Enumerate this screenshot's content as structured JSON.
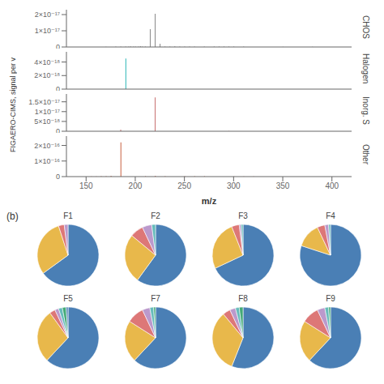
{
  "chart_data": [
    {
      "type": "bar",
      "title": "CHOS",
      "ylabel": "FIGAERO-CIMS, signal per v",
      "color": "#888888",
      "tick_labels": "y",
      "x": [
        170,
        180,
        185,
        190,
        193,
        195,
        198,
        200,
        203,
        205,
        207,
        210,
        215,
        220,
        225,
        230,
        235,
        240,
        245,
        250,
        255,
        260,
        270,
        280,
        285,
        290,
        295,
        300,
        310,
        350,
        380
      ],
      "values": [
        1.5e-19,
        2e-19,
        2e-19,
        2e-19,
        3e-19,
        4e-19,
        2e-19,
        3e-19,
        2e-19,
        5e-19,
        2e-19,
        2e-19,
        1.1e-17,
        2.05e-17,
        2e-18,
        2e-19,
        3e-19,
        4e-19,
        2e-19,
        3e-19,
        2e-19,
        2e-19,
        2e-19,
        3e-19,
        2e-19,
        2e-19,
        2e-19,
        2e-19,
        2e-19,
        1.5e-19,
        1.5e-19
      ],
      "xlim": [
        130,
        420
      ],
      "ylim": [
        0,
        2.3e-17
      ],
      "yticks": [
        0,
        {
          "value": 1e-17,
          "label": "1×10⁻¹⁷"
        },
        {
          "value": 2e-17,
          "label": "2×10⁻¹⁷"
        }
      ]
    },
    {
      "type": "bar",
      "title": "Halogen",
      "color": "#2ab5b5",
      "tick_labels": "y",
      "x": [
        190
      ],
      "values": [
        4.5e-18
      ],
      "xlim": [
        130,
        420
      ],
      "ylim": [
        0,
        5.5e-18
      ],
      "yticks": [
        0,
        {
          "value": 2e-18,
          "label": "2×10⁻¹⁸"
        },
        {
          "value": 4e-18,
          "label": "4×10⁻¹⁸"
        }
      ]
    },
    {
      "type": "bar",
      "title": "Inorg. S",
      "color": "#c87070",
      "tick_labels": "y",
      "x": [
        185,
        220,
        295
      ],
      "values": [
        8e-19,
        1.72e-17,
        1.2e-19
      ],
      "xlim": [
        130,
        420
      ],
      "ylim": [
        0,
        1.9e-17
      ],
      "yticks": [
        0,
        {
          "value": 5e-18,
          "label": "5×10⁻¹⁸"
        },
        {
          "value": 1e-17,
          "label": "1×10⁻¹⁷"
        },
        {
          "value": 1.5e-17,
          "label": "1.5×10⁻¹⁷"
        }
      ]
    },
    {
      "type": "bar",
      "title": "Other",
      "xlabel": "m/z",
      "color": "#c86040",
      "x": [
        140,
        150,
        155,
        160,
        165,
        170,
        175,
        185,
        210,
        220,
        230,
        250,
        260,
        270,
        300,
        310,
        320
      ],
      "values": [
        2e-19,
        4e-19,
        8e-19,
        1e-18,
        2e-18,
        3e-18,
        5e-18,
        2.2e-16,
        2e-18,
        5e-18,
        3e-18,
        2e-18,
        2e-18,
        2e-18,
        1.5e-18,
        1.5e-18,
        1.5e-18
      ],
      "xlim": [
        130,
        420
      ],
      "xticks": [
        150,
        200,
        250,
        300,
        350,
        400
      ],
      "ylim": [
        0,
        2.6e-16
      ],
      "yticks": [
        0,
        {
          "value": 1e-16,
          "label": "1×10⁻¹⁶"
        },
        {
          "value": 2e-16,
          "label": "2×10⁻¹⁶"
        }
      ]
    },
    {
      "type": "pie",
      "title": "F1",
      "annotations": [
        "(b)"
      ],
      "values": [
        0.65,
        0.3,
        0.03,
        0.02
      ],
      "colors": [
        "#4a7fb5",
        "#e8b84b",
        "#dd7777",
        "#bb99cc"
      ]
    },
    {
      "type": "pie",
      "title": "F2",
      "values": [
        0.6,
        0.26,
        0.07,
        0.05,
        0.02
      ],
      "colors": [
        "#4a7fb5",
        "#e8b84b",
        "#dd7777",
        "#bb99cc",
        "#66bbbb"
      ]
    },
    {
      "type": "pie",
      "title": "F3",
      "values": [
        0.68,
        0.26,
        0.04,
        0.01,
        0.01
      ],
      "colors": [
        "#4a7fb5",
        "#e8b84b",
        "#dd7777",
        "#bb99cc",
        "#66bbbb"
      ]
    },
    {
      "type": "pie",
      "title": "F4",
      "values": [
        0.8,
        0.13,
        0.04,
        0.02,
        0.01
      ],
      "colors": [
        "#4a7fb5",
        "#e8b84b",
        "#dd7777",
        "#bb99cc",
        "#66bbbb"
      ]
    },
    {
      "type": "pie",
      "title": "F5",
      "values": [
        0.62,
        0.28,
        0.03,
        0.02,
        0.02,
        0.02,
        0.01
      ],
      "colors": [
        "#4a7fb5",
        "#e8b84b",
        "#dd7777",
        "#bb99cc",
        "#66bbbb",
        "#44aa77",
        "#4a7fb5"
      ]
    },
    {
      "type": "pie",
      "title": "F7",
      "values": [
        0.62,
        0.22,
        0.09,
        0.04,
        0.02,
        0.01
      ],
      "colors": [
        "#4a7fb5",
        "#e8b84b",
        "#dd7777",
        "#bb99cc",
        "#66bbbb",
        "#44aa77"
      ]
    },
    {
      "type": "pie",
      "title": "F8",
      "values": [
        0.56,
        0.33,
        0.04,
        0.03,
        0.02,
        0.02
      ],
      "colors": [
        "#4a7fb5",
        "#e8b84b",
        "#dd7777",
        "#bb99cc",
        "#66bbbb",
        "#44aa77"
      ]
    },
    {
      "type": "pie",
      "title": "F9",
      "values": [
        0.62,
        0.22,
        0.09,
        0.04,
        0.02,
        0.01
      ],
      "colors": [
        "#4a7fb5",
        "#e8b84b",
        "#dd7777",
        "#bb99cc",
        "#66bbbb",
        "#44aa77"
      ]
    }
  ]
}
